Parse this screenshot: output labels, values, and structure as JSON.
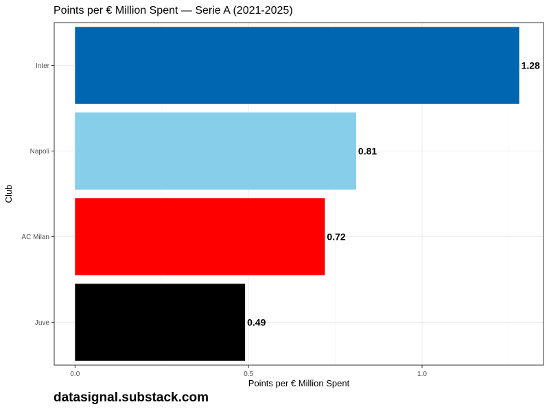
{
  "chart_data": {
    "type": "bar",
    "orientation": "horizontal",
    "title": "Points per € Million Spent — Serie A (2021-2025)",
    "xlabel": "Points per € Million Spent",
    "ylabel": "Club",
    "categories": [
      "Inter",
      "Napoli",
      "AC Milan",
      "Juve"
    ],
    "values": [
      1.28,
      0.81,
      0.72,
      0.49
    ],
    "value_labels": [
      "1.28",
      "0.81",
      "0.72",
      "0.49"
    ],
    "colors": [
      "#0066b2",
      "#87ceeb",
      "#ff0000",
      "#000000"
    ],
    "xlim": [
      -0.06,
      1.35
    ],
    "xticks": [
      0.0,
      0.5,
      1.0
    ],
    "xtick_labels": [
      "0.0",
      "0.5",
      "1.0"
    ],
    "grid": true,
    "legend": "none"
  },
  "caption": "datasignal.substack.com"
}
